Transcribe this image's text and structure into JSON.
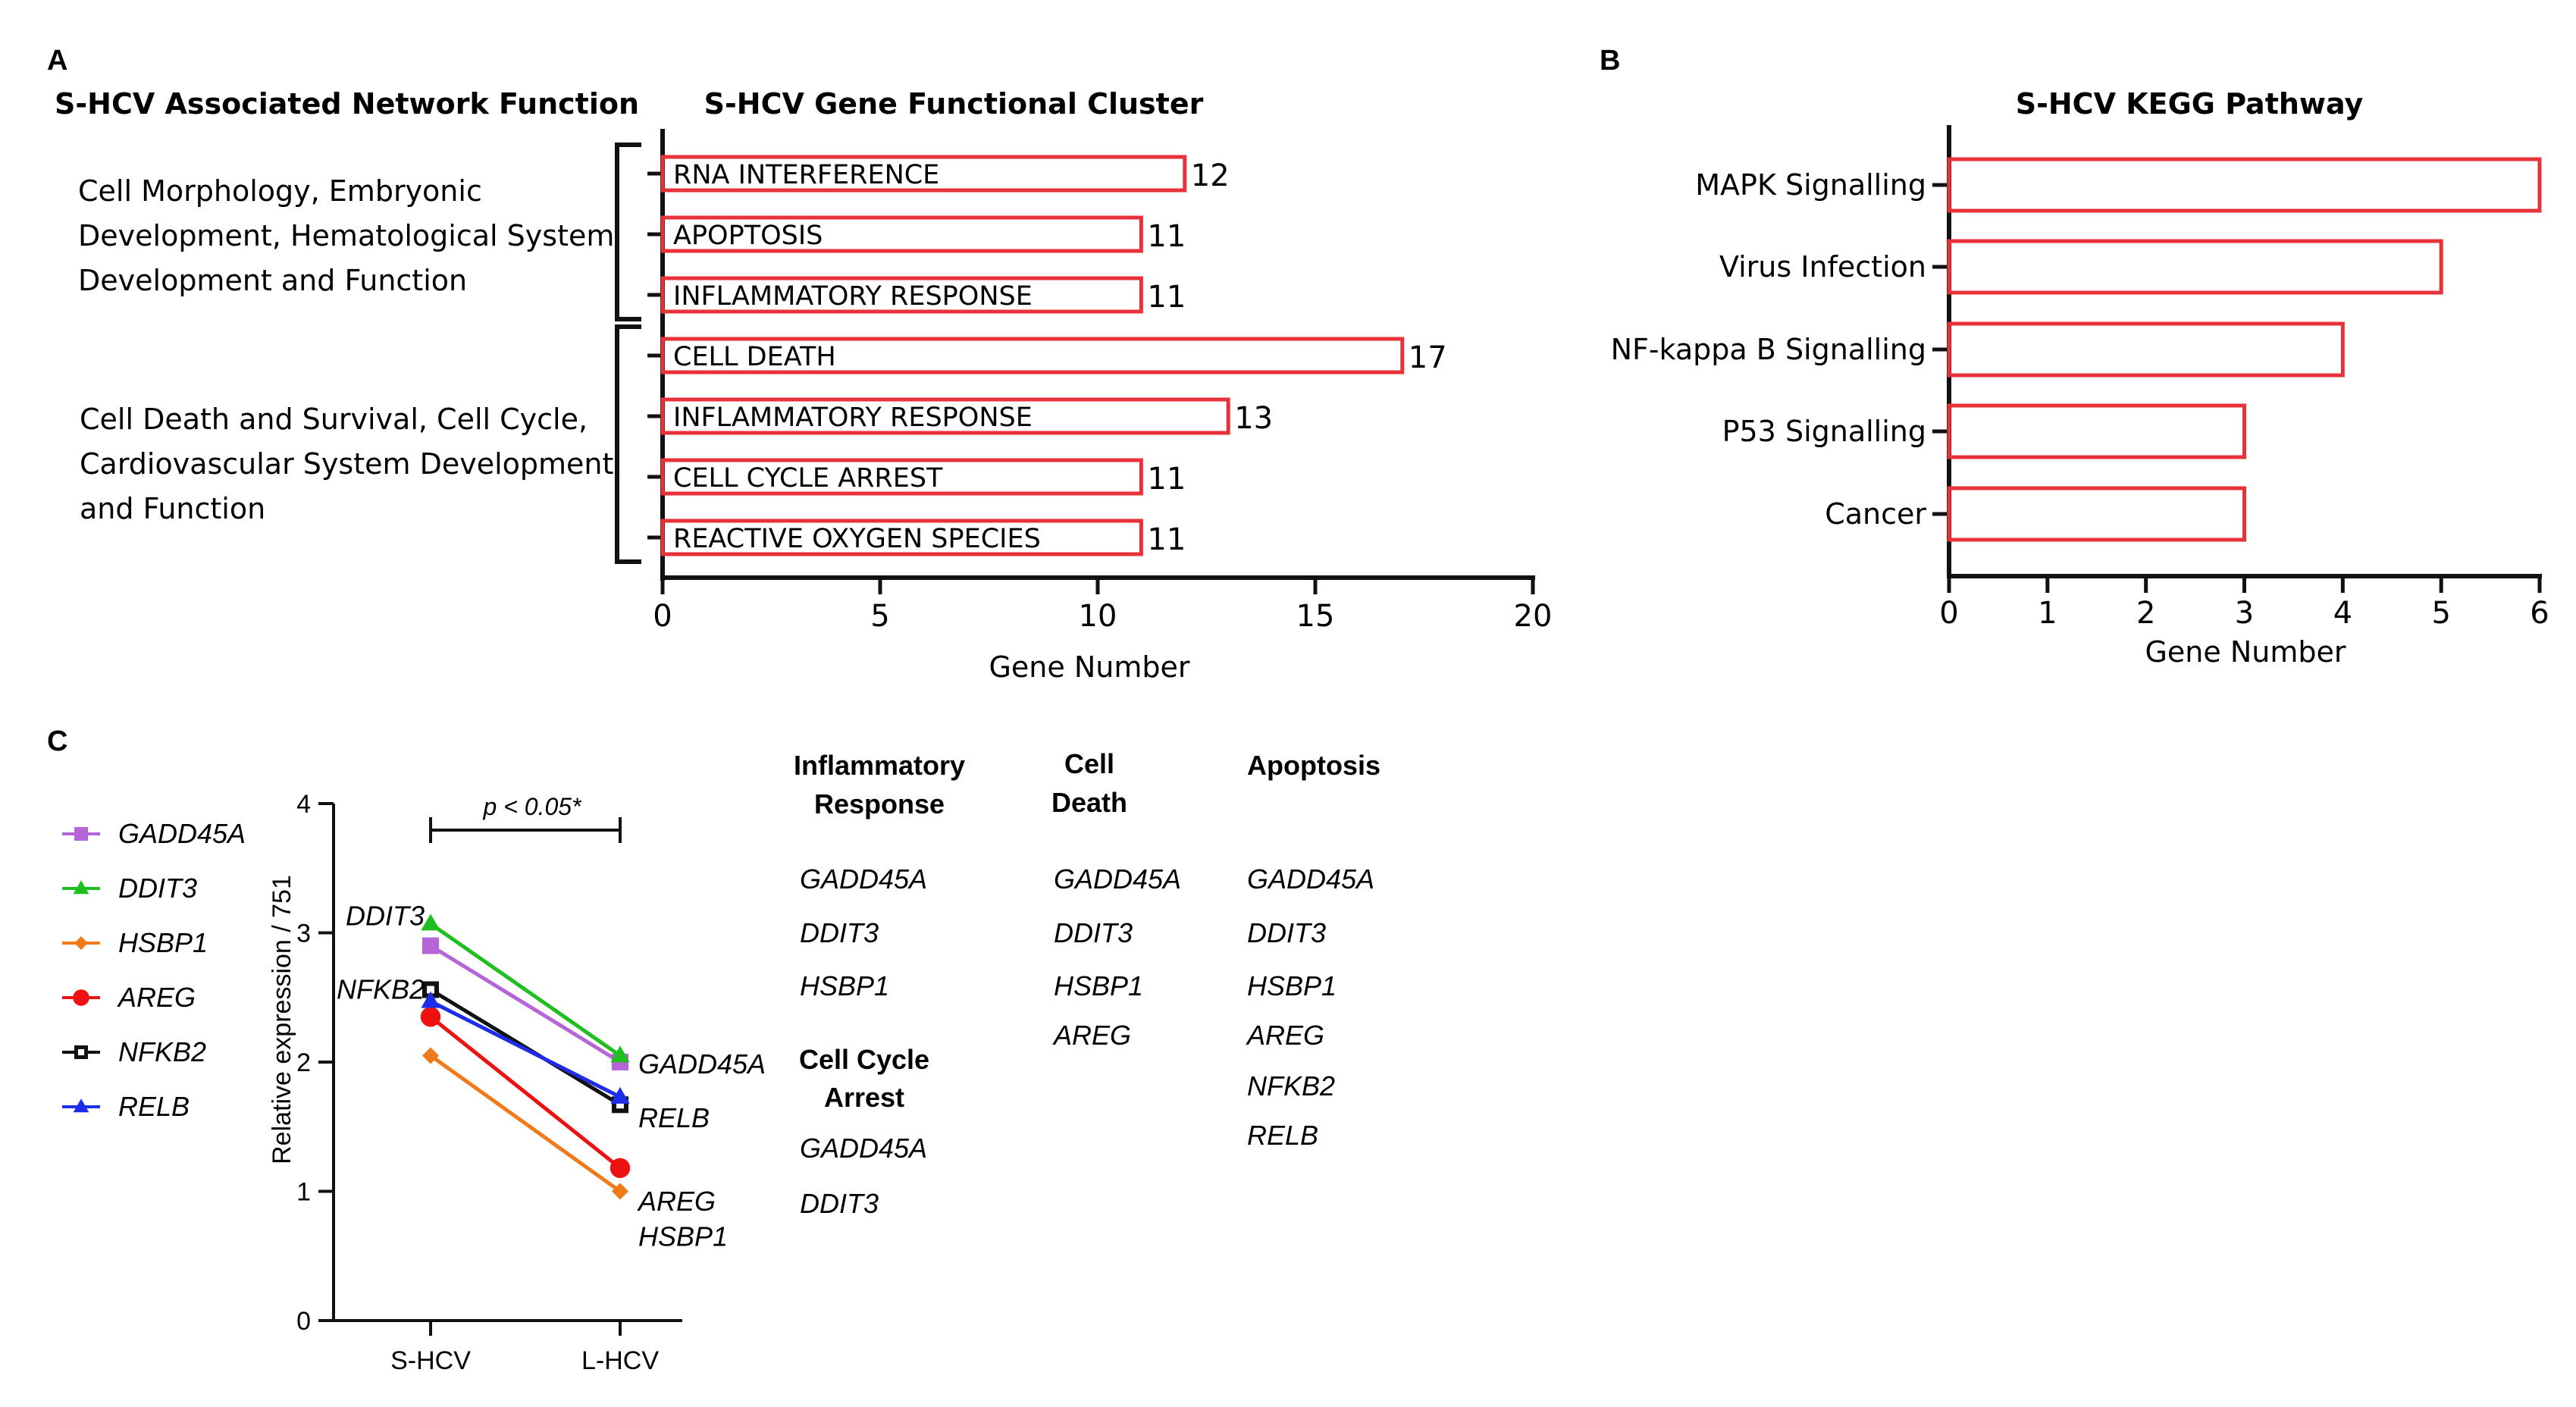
{
  "panel_labels": {
    "a": "A",
    "b": "B",
    "c": "C"
  },
  "panel_a": {
    "left_title": "S-HCV Associated Network Function",
    "networks": [
      {
        "lines": [
          "Cell Morphology, Embryonic",
          "Development, Hematological System",
          "Development and Function"
        ]
      },
      {
        "lines": [
          "Cell Death and Survival, Cell Cycle,",
          "Cardiovascular System Development",
          "and Function"
        ]
      }
    ]
  },
  "chart_data": [
    {
      "id": "cluster",
      "type": "bar",
      "orientation": "horizontal",
      "title": "S-HCV Gene Functional Cluster",
      "xlabel": "Gene Number",
      "ylabel": "",
      "xlim": [
        0,
        20
      ],
      "xticks": [
        0,
        5,
        10,
        15,
        20
      ],
      "categories": [
        "RNA INTERFERENCE",
        "APOPTOSIS",
        "INFLAMMATORY RESPONSE",
        "CELL DEATH",
        "INFLAMMATORY RESPONSE",
        "CELL CYCLE ARREST",
        "REACTIVE OXYGEN SPECIES"
      ],
      "values": [
        12,
        11,
        11,
        17,
        13,
        11,
        11
      ],
      "groups": [
        [
          0,
          2
        ],
        [
          3,
          6
        ]
      ],
      "bar_color": "#e8323a"
    },
    {
      "id": "kegg",
      "type": "bar",
      "orientation": "horizontal",
      "title": "S-HCV KEGG Pathway",
      "xlabel": "Gene Number",
      "ylabel": "",
      "xlim": [
        0,
        6
      ],
      "xticks": [
        0,
        1,
        2,
        3,
        4,
        5,
        6
      ],
      "categories": [
        "MAPK Signalling",
        "Virus Infection",
        "NF-kappa B Signalling",
        "P53 Signalling",
        "Cancer"
      ],
      "values": [
        6,
        5,
        4,
        3,
        3
      ],
      "bar_color": "#e8323a"
    },
    {
      "id": "expression",
      "type": "line",
      "title": "",
      "xlabel": "",
      "ylabel": "Relative expression / 751",
      "categories": [
        "S-HCV",
        "L-HCV"
      ],
      "ylim": [
        0,
        4
      ],
      "yticks": [
        0,
        1,
        2,
        3,
        4
      ],
      "significance": "p < 0.05*",
      "series": [
        {
          "name": "GADD45A",
          "values": [
            2.9,
            2.0
          ],
          "color": "#b565d8",
          "marker": "square"
        },
        {
          "name": "DDIT3",
          "values": [
            3.07,
            2.05
          ],
          "color": "#1fbf1f",
          "marker": "triangle"
        },
        {
          "name": "HSBP1",
          "values": [
            2.05,
            1.0
          ],
          "color": "#f07a1a",
          "marker": "diamond"
        },
        {
          "name": "AREG",
          "values": [
            2.35,
            1.18
          ],
          "color": "#ee1111",
          "marker": "circle"
        },
        {
          "name": "NFKB2",
          "values": [
            2.56,
            1.67
          ],
          "color": "#111111",
          "marker": "square-open"
        },
        {
          "name": "RELB",
          "values": [
            2.47,
            1.73
          ],
          "color": "#1d2ee8",
          "marker": "triangle"
        }
      ],
      "point_labels": [
        {
          "text": "DDIT3",
          "series": "DDIT3",
          "at": 0,
          "side": "left"
        },
        {
          "text": "NFKB2",
          "series": "NFKB2",
          "at": 0,
          "side": "left"
        },
        {
          "text": "GADD45A",
          "series": "GADD45A",
          "at": 1,
          "side": "right"
        },
        {
          "text": "RELB",
          "series": "RELB",
          "at": 1,
          "side": "right"
        },
        {
          "text": "AREG",
          "series": "AREG",
          "at": 1,
          "side": "right"
        },
        {
          "text": "HSBP1",
          "series": "HSBP1",
          "at": 1,
          "side": "right"
        }
      ]
    }
  ],
  "gene_lists": {
    "inflammatory": {
      "title_lines": [
        "Inflammatory",
        "Response"
      ],
      "genes": [
        "GADD45A",
        "DDIT3",
        "HSBP1"
      ]
    },
    "cell_death": {
      "title_lines": [
        "Cell",
        "Death"
      ],
      "genes": [
        "GADD45A",
        "DDIT3",
        "HSBP1",
        "AREG"
      ]
    },
    "apoptosis": {
      "title_lines": [
        "Apoptosis"
      ],
      "genes": [
        "GADD45A",
        "DDIT3",
        "HSBP1",
        "AREG",
        "NFKB2",
        "RELB"
      ]
    },
    "cell_cycle": {
      "title_lines": [
        "Cell Cycle",
        "Arrest"
      ],
      "genes": [
        "GADD45A",
        "DDIT3"
      ]
    }
  }
}
